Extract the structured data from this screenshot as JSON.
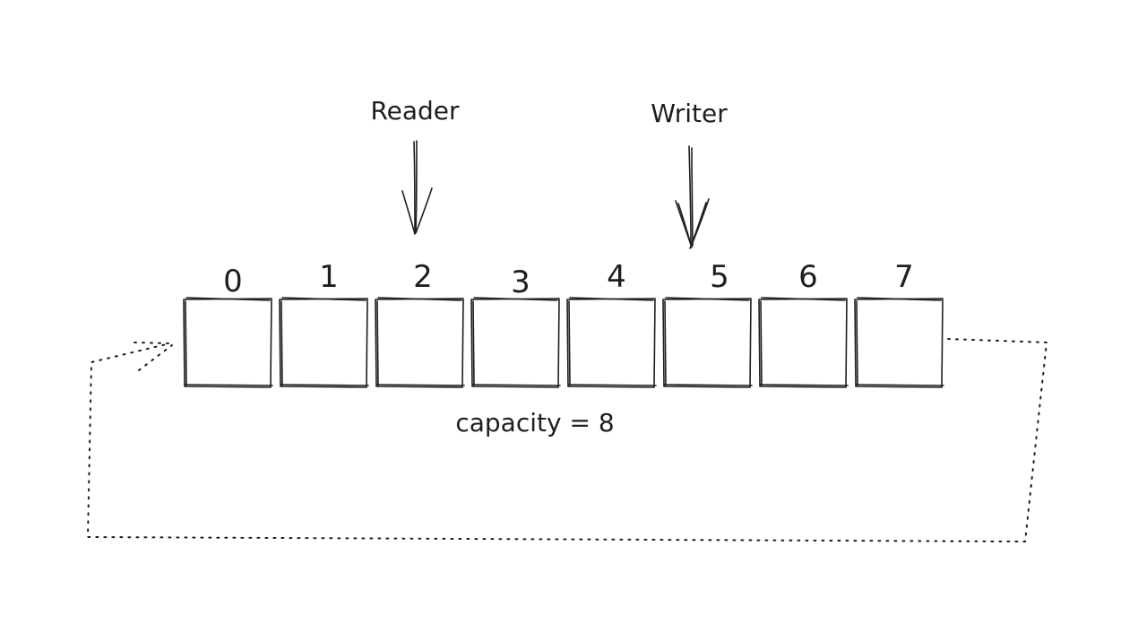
{
  "pointers": {
    "reader": {
      "label": "Reader",
      "index": 2
    },
    "writer": {
      "label": "Writer",
      "index": 5
    }
  },
  "buffer": {
    "slots": [
      "0",
      "1",
      "2",
      "3",
      "4",
      "5",
      "6",
      "7"
    ],
    "capacity_label": "capacity = 8"
  },
  "colors": {
    "ink": "#1e1e1e",
    "background": "#ffffff"
  }
}
